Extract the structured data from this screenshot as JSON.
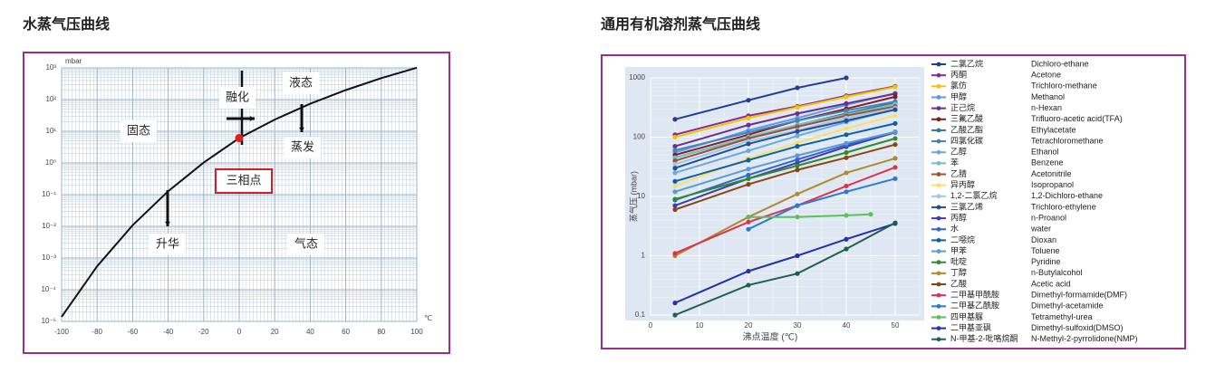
{
  "chart_data": [
    {
      "type": "line",
      "title": "水蒸气压曲线",
      "y_unit": "mbar",
      "x_unit": "℃",
      "log_y": true,
      "grid": true,
      "color": "#111111",
      "x": [
        -100,
        -80,
        -60,
        -40,
        -20,
        0,
        20,
        40,
        60,
        80,
        100
      ],
      "values": [
        1.4e-05,
        0.00055,
        0.0108,
        0.128,
        1.03,
        6.1,
        23.4,
        73.8,
        199,
        474,
        1013
      ],
      "xlim": [
        -100,
        100
      ],
      "xticks": [
        -100,
        -80,
        -60,
        -40,
        -20,
        0,
        20,
        40,
        60,
        80,
        100
      ],
      "ylim": [
        1e-05,
        1000
      ],
      "yticks": [
        {
          "value": 1e-05,
          "label": "10⁻⁵"
        },
        {
          "value": 0.0001,
          "label": "10⁻⁴"
        },
        {
          "value": 0.001,
          "label": "10⁻³"
        },
        {
          "value": 0.01,
          "label": "10⁻²"
        },
        {
          "value": 0.1,
          "label": "10⁻¹"
        },
        {
          "value": 1,
          "label": "10⁰"
        },
        {
          "value": 10,
          "label": "10¹"
        },
        {
          "value": 100,
          "label": "10²"
        },
        {
          "value": 1000,
          "label": "10³"
        }
      ],
      "triple_point": {
        "x": 0,
        "value": 6.1,
        "label": "三相点",
        "color": "#e02020"
      },
      "annotations": [
        "固态",
        "液态",
        "融化",
        "蒸发",
        "升华",
        "气态"
      ]
    },
    {
      "type": "line",
      "title": "通用有机溶剂蒸气压曲线",
      "x_label": "沸点温度 (℃)",
      "y_label": "蒸气压 (mbar)",
      "log_y": true,
      "grid": true,
      "xlim": [
        0,
        55
      ],
      "xticks": [
        0,
        10,
        20,
        30,
        40,
        50
      ],
      "ylim": [
        0.1,
        1000
      ],
      "yticks": [
        0.1,
        1,
        10,
        100,
        1000
      ],
      "series": [
        {
          "name": "二氯乙烷",
          "name_en": "Dichloro-ethane",
          "color": "#1f3d99",
          "x": [
            5,
            20,
            30,
            40
          ],
          "values": [
            200,
            420,
            680,
            1000
          ]
        },
        {
          "name": "丙酮",
          "name_en": "Acetone",
          "color": "#8b2a8b",
          "x": [
            5,
            20,
            30,
            40,
            50
          ],
          "values": [
            110,
            230,
            330,
            500,
            720
          ]
        },
        {
          "name": "氯仿",
          "name_en": "Trichloro-methane",
          "color": "#f5c400",
          "x": [
            5,
            20,
            30,
            40,
            50
          ],
          "values": [
            100,
            210,
            320,
            480,
            700
          ]
        },
        {
          "name": "甲醇",
          "name_en": "Methanol",
          "color": "#5aa0e0",
          "x": [
            5,
            20,
            30,
            40,
            50
          ],
          "values": [
            55,
            130,
            210,
            350,
            550
          ]
        },
        {
          "name": "正己烷",
          "name_en": "n-Hexan",
          "color": "#6b2f8f",
          "x": [
            5,
            20,
            30,
            40,
            50
          ],
          "values": [
            70,
            160,
            250,
            370,
            540
          ]
        },
        {
          "name": "三氟乙酸",
          "name_en": "Trifluoro-acetic acid(TFA)",
          "color": "#8b1a1a",
          "x": [
            5,
            20,
            30,
            40,
            50
          ],
          "values": [
            50,
            110,
            190,
            300,
            480
          ]
        },
        {
          "name": "乙酸乙酯",
          "name_en": "Ethylacetate",
          "color": "#2a7f8f",
          "x": [
            5,
            20,
            30,
            40,
            50
          ],
          "values": [
            45,
            100,
            160,
            250,
            380
          ]
        },
        {
          "name": "四氯化碳",
          "name_en": "Tetrachloromethane",
          "color": "#4a7fc0",
          "x": [
            5,
            20,
            30,
            40,
            50
          ],
          "values": [
            60,
            120,
            190,
            280,
            400
          ]
        },
        {
          "name": "乙醇",
          "name_en": "Ethanol",
          "color": "#6fa8dc",
          "x": [
            5,
            20,
            30,
            40,
            50
          ],
          "values": [
            25,
            59,
            105,
            180,
            295
          ]
        },
        {
          "name": "苯",
          "name_en": "Benzene",
          "color": "#70c0d0",
          "x": [
            5,
            20,
            30,
            40,
            50
          ],
          "values": [
            45,
            100,
            160,
            240,
            360
          ]
        },
        {
          "name": "乙腈",
          "name_en": "Acetonitrile",
          "color": "#a0522d",
          "x": [
            5,
            20,
            30,
            40,
            50
          ],
          "values": [
            40,
            95,
            150,
            230,
            330
          ]
        },
        {
          "name": "异丙醇",
          "name_en": "Isopropanol",
          "color": "#f7e06a",
          "x": [
            5,
            20,
            30,
            40,
            50
          ],
          "values": [
            15,
            44,
            80,
            140,
            230
          ]
        },
        {
          "name": "1,2-二氯乙烷",
          "name_en": "1,2-Dichloro-ethane",
          "color": "#9fc5e8",
          "x": [
            5,
            20,
            30,
            40,
            50
          ],
          "values": [
            35,
            85,
            130,
            210,
            310
          ]
        },
        {
          "name": "三氯乙烯",
          "name_en": "Trichloro-ethylene",
          "color": "#1f4e9a",
          "x": [
            5,
            20,
            30,
            40,
            50
          ],
          "values": [
            30,
            77,
            125,
            190,
            290
          ]
        },
        {
          "name": "丙醇",
          "name_en": "n-Proanol",
          "color": "#3d3db0",
          "x": [
            5,
            20,
            30,
            40,
            50
          ],
          "values": [
            7,
            20,
            37,
            69,
            120
          ]
        },
        {
          "name": "水",
          "name_en": "water",
          "color": "#3366cc",
          "x": [
            5,
            20,
            30,
            40,
            50
          ],
          "values": [
            8.7,
            23,
            42,
            74,
            123
          ]
        },
        {
          "name": "二噁烷",
          "name_en": "Dioxan",
          "color": "#0b5ea8",
          "x": [
            5,
            20,
            30,
            40,
            50
          ],
          "values": [
            18,
            41,
            70,
            110,
            170
          ]
        },
        {
          "name": "甲苯",
          "name_en": "Toluene",
          "color": "#5b9bd5",
          "x": [
            5,
            20,
            30,
            40,
            50
          ],
          "values": [
            12,
            29,
            49,
            79,
            123
          ]
        },
        {
          "name": "吡啶",
          "name_en": "Pyridine",
          "color": "#2e8b2e",
          "x": [
            5,
            20,
            30,
            40,
            50
          ],
          "values": [
            9,
            20,
            33,
            55,
            95
          ]
        },
        {
          "name": "丁醇",
          "name_en": "n-Butylalcohol",
          "color": "#b08a2e",
          "x": [
            5,
            20,
            30,
            40,
            50
          ],
          "values": [
            1,
            4.5,
            11,
            25,
            44
          ]
        },
        {
          "name": "乙酸",
          "name_en": "Acetic acid",
          "color": "#8b4513",
          "x": [
            5,
            20,
            30,
            40,
            50
          ],
          "values": [
            6,
            16,
            28,
            45,
            75
          ]
        },
        {
          "name": "二甲基甲酰胺",
          "name_en": "Dimethyl-formamide(DMF)",
          "color": "#e03050",
          "x": [
            5,
            20,
            30,
            40,
            50
          ],
          "values": [
            1.1,
            3.7,
            7,
            15,
            31
          ]
        },
        {
          "name": "二甲基乙酰胺",
          "name_en": "Dimethyl-acetamide",
          "color": "#2b7bd6",
          "x": [
            20,
            30,
            40,
            50
          ],
          "values": [
            2.8,
            7,
            12,
            20
          ]
        },
        {
          "name": "四甲基脲",
          "name_en": "Tetramethyl-urea",
          "color": "#5cc05c",
          "x": [
            20,
            30,
            40,
            45
          ],
          "values": [
            4.5,
            4.5,
            4.8,
            5
          ]
        },
        {
          "name": "二甲基亚砜",
          "name_en": "Dimethyl-sulfoxid(DMSO)",
          "color": "#2233aa",
          "x": [
            5,
            20,
            30,
            40,
            50
          ],
          "values": [
            0.16,
            0.55,
            1,
            1.9,
            3.5
          ]
        },
        {
          "name": "N-甲基-2-吡咯烷酮",
          "name_en": "N-Methyl-2-pyrrolidone(NMP)",
          "color": "#1f5f4f",
          "x": [
            5,
            20,
            30,
            40,
            50
          ],
          "values": [
            0.1,
            0.32,
            0.5,
            1.3,
            3.6
          ]
        }
      ]
    }
  ]
}
